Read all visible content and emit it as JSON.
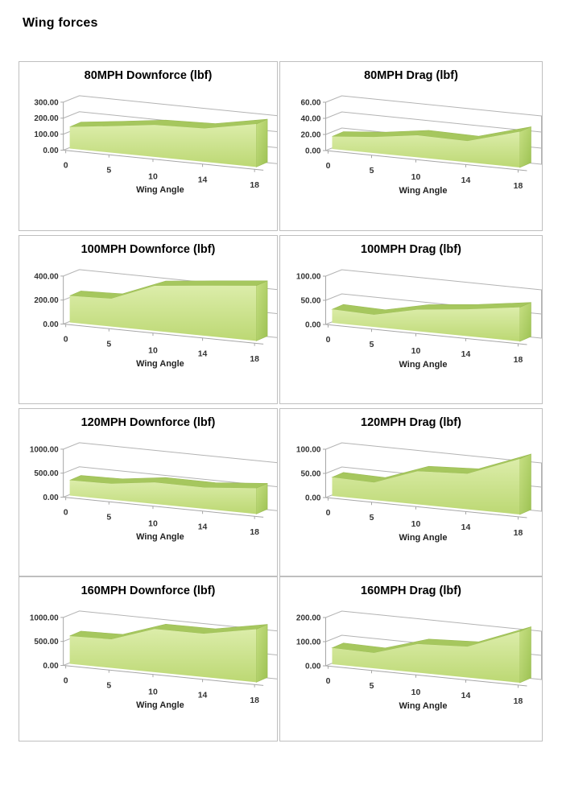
{
  "page": {
    "title": "Wing forces",
    "colors": {
      "area_face_top": "#dcedaa",
      "area_face_bottom": "#bcd873",
      "area_top_band": "#a6c75e",
      "area_side_top": "#c6df82",
      "area_side_bottom": "#9dc253",
      "area_edge": "#9bbb55",
      "grid_line": "#b3b3b3",
      "axis_line": "#a6a6a6",
      "cell_border": "#bfbfbf",
      "tick_text": "#333333"
    }
  },
  "chart_data": [
    {
      "type": "area",
      "title": "80MPH Downforce (lbf)",
      "xlabel": "Wing Angle",
      "categories": [
        "0",
        "5",
        "10",
        "14",
        "18"
      ],
      "values": [
        140,
        150,
        160,
        150,
        175
      ],
      "yticks": [
        0,
        100,
        200,
        300
      ],
      "ylim": [
        0,
        300
      ],
      "tick_label_format": "2-decimals",
      "grid": true,
      "legend": "none"
    },
    {
      "type": "area",
      "title": "80MPH Drag (lbf)",
      "xlabel": "Wing Angle",
      "categories": [
        "0",
        "5",
        "10",
        "14",
        "18"
      ],
      "values": [
        16,
        18,
        22,
        19,
        29
      ],
      "yticks": [
        0,
        20,
        40,
        60
      ],
      "ylim": [
        0,
        60
      ],
      "tick_label_format": "2-decimals",
      "grid": true,
      "legend": "none"
    },
    {
      "type": "area",
      "title": "100MPH Downforce (lbf)",
      "xlabel": "Wing Angle",
      "categories": [
        "0",
        "5",
        "10",
        "14",
        "18"
      ],
      "values": [
        230,
        210,
        300,
        300,
        300
      ],
      "yticks": [
        0,
        200,
        400
      ],
      "ylim": [
        0,
        400
      ],
      "tick_label_format": "2-decimals",
      "grid": true,
      "legend": "none"
    },
    {
      "type": "area",
      "title": "100MPH Drag (lbf)",
      "xlabel": "Wing Angle",
      "categories": [
        "0",
        "5",
        "10",
        "14",
        "18"
      ],
      "values": [
        29,
        23,
        36,
        40,
        46
      ],
      "yticks": [
        0,
        50,
        100
      ],
      "ylim": [
        0,
        100
      ],
      "tick_label_format": "2-decimals",
      "grid": true,
      "legend": "none"
    },
    {
      "type": "area",
      "title": "120MPH Downforce (lbf)",
      "xlabel": "Wing Angle",
      "categories": [
        "0",
        "5",
        "10",
        "14",
        "18"
      ],
      "values": [
        330,
        300,
        360,
        320,
        350
      ],
      "yticks": [
        0,
        500,
        1000
      ],
      "ylim": [
        0,
        1000
      ],
      "tick_label_format": "2-decimals",
      "grid": true,
      "legend": "none"
    },
    {
      "type": "area",
      "title": "120MPH Drag (lbf)",
      "xlabel": "Wing Angle",
      "categories": [
        "0",
        "5",
        "10",
        "14",
        "18"
      ],
      "values": [
        40,
        33,
        55,
        53,
        75
      ],
      "yticks": [
        0,
        50,
        100
      ],
      "ylim": [
        0,
        100
      ],
      "tick_label_format": "2-decimals",
      "grid": true,
      "legend": "none"
    },
    {
      "type": "area",
      "title": "160MPH Downforce (lbf)",
      "xlabel": "Wing Angle",
      "categories": [
        "0",
        "5",
        "10",
        "14",
        "18"
      ],
      "values": [
        600,
        540,
        720,
        650,
        720
      ],
      "yticks": [
        0,
        500,
        1000
      ],
      "ylim": [
        0,
        1000
      ],
      "tick_label_format": "2-decimals",
      "grid": true,
      "legend": "none"
    },
    {
      "type": "area",
      "title": "160MPH Drag (lbf)",
      "xlabel": "Wing Angle",
      "categories": [
        "0",
        "5",
        "10",
        "14",
        "18"
      ],
      "values": [
        70,
        58,
        95,
        92,
        138
      ],
      "yticks": [
        0,
        100,
        200
      ],
      "ylim": [
        0,
        200
      ],
      "tick_label_format": "2-decimals",
      "grid": true,
      "legend": "none"
    }
  ]
}
